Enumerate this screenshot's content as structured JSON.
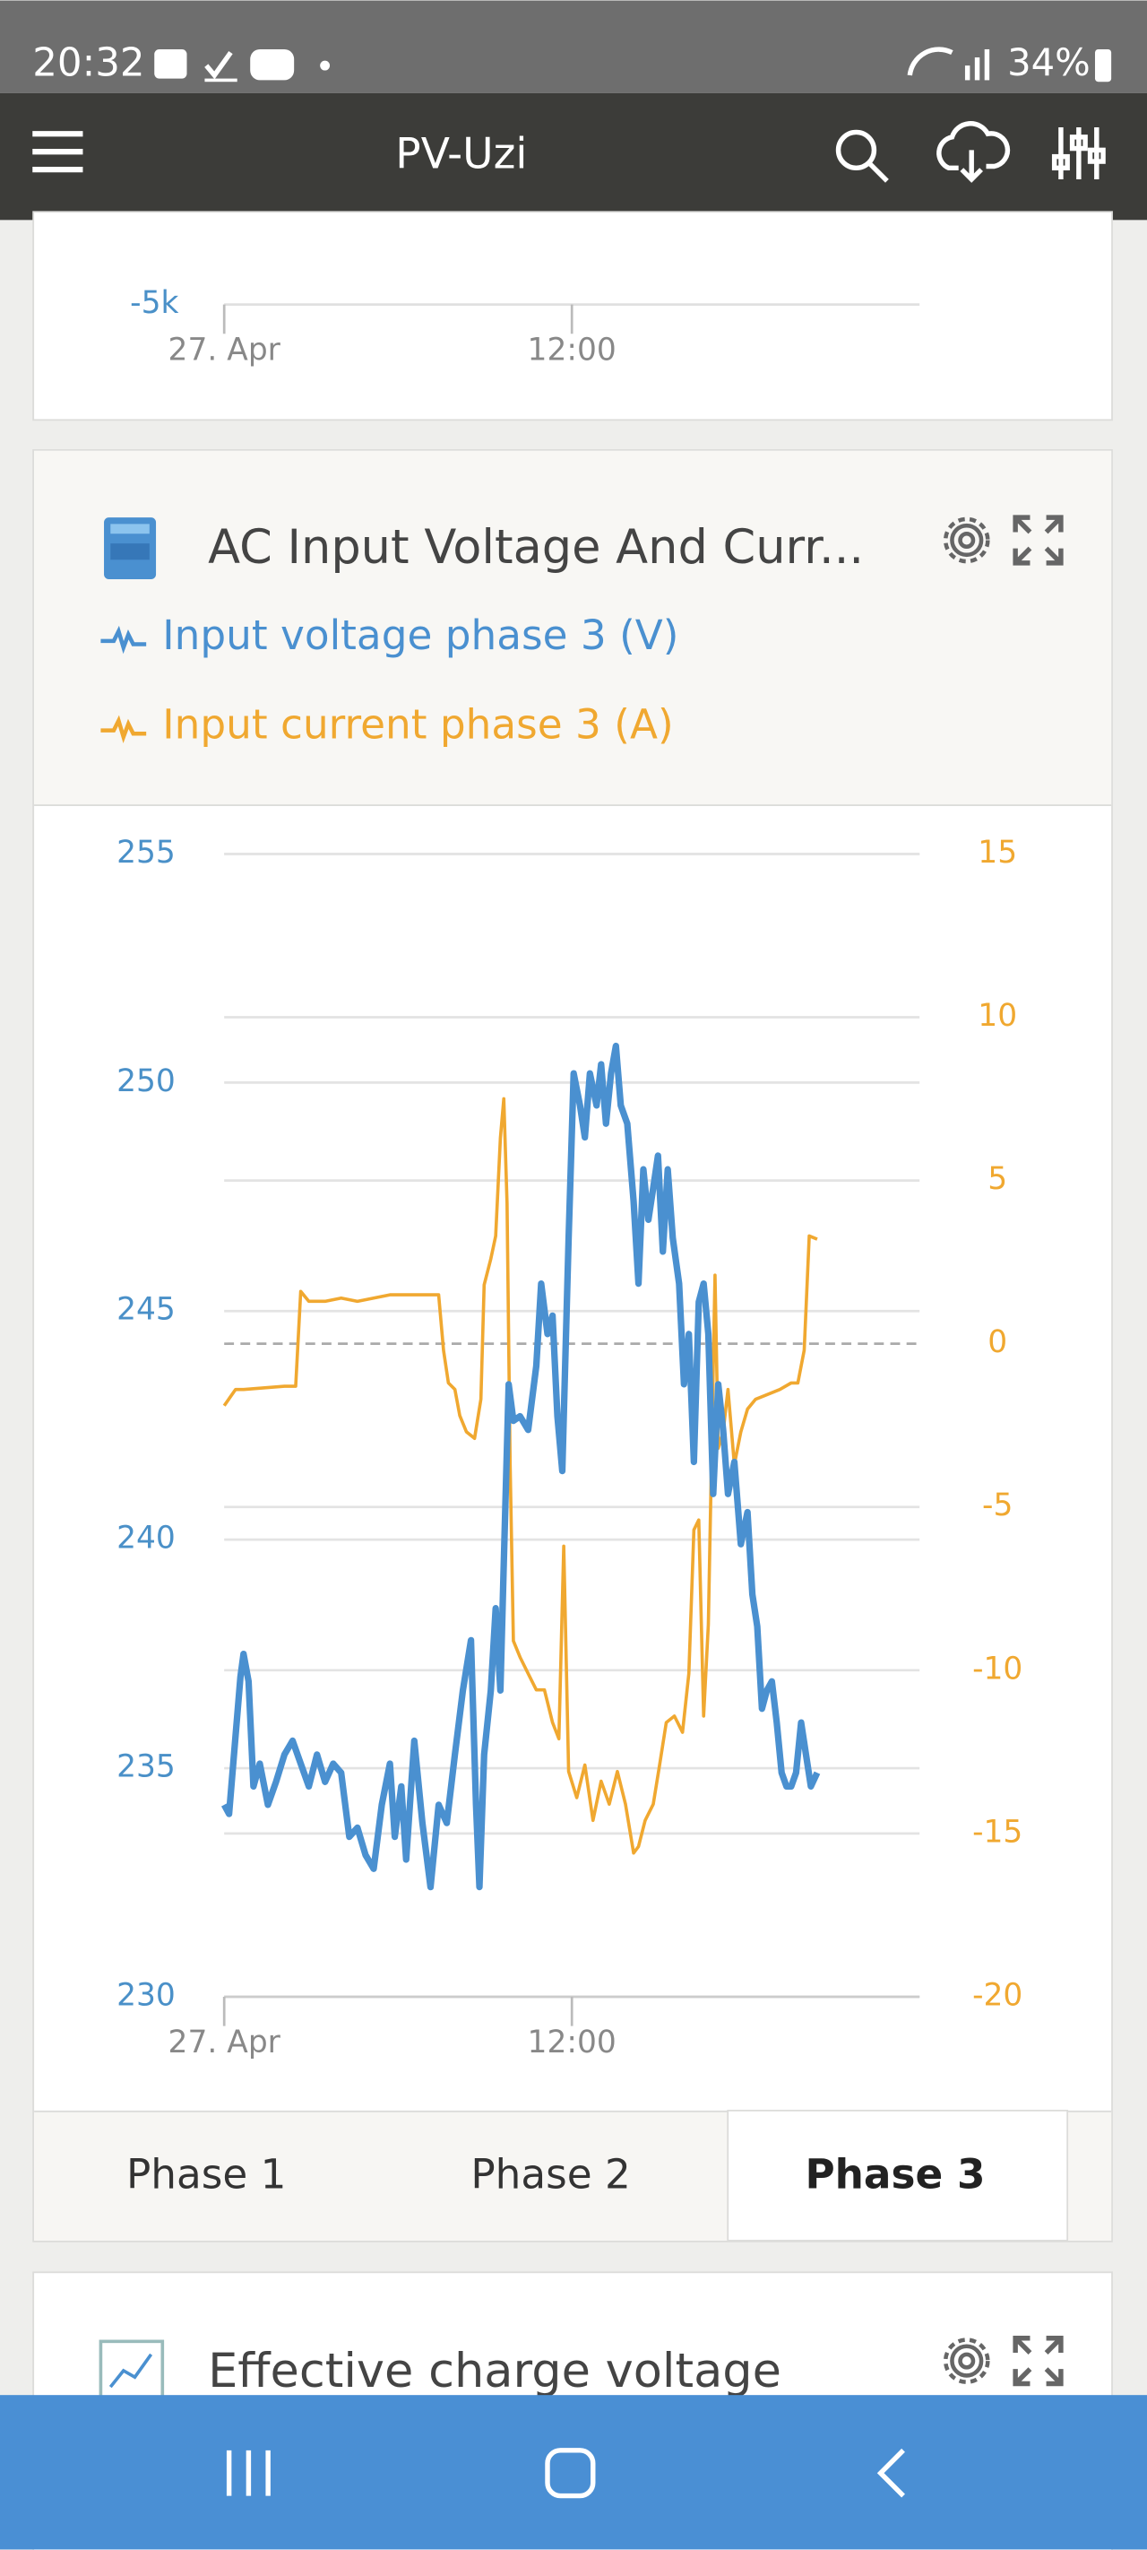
{
  "status_bar": {
    "time": "20:32",
    "battery": "34%"
  },
  "app_bar": {
    "title": "PV-Uzi"
  },
  "top_card": {
    "xlim": [
      0,
      24
    ],
    "yticks": [
      {
        "value": -5000,
        "label": "-5k"
      }
    ],
    "xticks": [
      {
        "value": 0,
        "label": "27. Apr"
      },
      {
        "value": 12,
        "label": "12:00"
      }
    ]
  },
  "chart_data": {
    "type": "line",
    "title": "AC Input Voltage And Curr...",
    "series": [
      {
        "name": "Input voltage phase 3 (V)",
        "color": "#4a90d0",
        "x": [
          0,
          0.17,
          0.56,
          0.67,
          0.84,
          1.01,
          1.23,
          1.51,
          1.79,
          2.08,
          2.36,
          2.64,
          2.92,
          3.2,
          3.48,
          3.76,
          4.04,
          4.32,
          4.6,
          4.88,
          5.16,
          5.44,
          5.72,
          5.89,
          6.11,
          6.28,
          6.56,
          6.84,
          7.12,
          7.4,
          7.68,
          7.96,
          8.24,
          8.52,
          8.69,
          8.81,
          8.97,
          9.2,
          9.37,
          9.53,
          9.65,
          9.82,
          9.98,
          10.21,
          10.49,
          10.77,
          10.94,
          11.16,
          11.33,
          11.5,
          11.67,
          11.89,
          12.06,
          12.28,
          12.45,
          12.62,
          12.85,
          13.01,
          13.18,
          13.35,
          13.52,
          13.69,
          13.91,
          14.13,
          14.3,
          14.47,
          14.64,
          14.81,
          14.97,
          15.14,
          15.31,
          15.48,
          15.7,
          15.87,
          16.04,
          16.21,
          16.38,
          16.55,
          16.71,
          16.88,
          17.05,
          17.22,
          17.39,
          17.61,
          17.83,
          18.06,
          18.23,
          18.4,
          18.56,
          18.73,
          18.9,
          19.07,
          19.24,
          19.41,
          19.57,
          19.74,
          19.91,
          20.08,
          20.25,
          20.47
        ],
        "values": [
          234.2,
          234.0,
          237.0,
          237.5,
          236.9,
          234.6,
          235.1,
          234.2,
          234.7,
          235.3,
          235.6,
          235.1,
          234.6,
          235.3,
          234.7,
          235.1,
          234.9,
          233.5,
          233.7,
          233.1,
          232.8,
          234.2,
          235.1,
          233.5,
          234.6,
          233.0,
          235.6,
          233.8,
          232.4,
          234.2,
          233.8,
          235.3,
          236.7,
          237.8,
          234.2,
          232.4,
          235.3,
          236.7,
          238.5,
          236.7,
          239.5,
          243.4,
          242.6,
          242.7,
          242.4,
          243.8,
          245.6,
          244.5,
          244.9,
          242.7,
          241.5,
          246.6,
          250.2,
          249.5,
          248.8,
          250.2,
          249.5,
          250.4,
          249.1,
          250.2,
          250.8,
          249.5,
          249.1,
          247.4,
          245.6,
          248.1,
          247.0,
          247.7,
          248.4,
          246.3,
          248.1,
          246.6,
          245.6,
          243.4,
          244.5,
          241.7,
          245.2,
          245.6,
          244.5,
          241.0,
          243.4,
          242.4,
          241.0,
          241.7,
          239.9,
          240.6,
          238.8,
          238.1,
          236.3,
          236.7,
          236.9,
          236.0,
          234.9,
          234.6,
          234.6,
          234.9,
          236.0,
          235.3,
          234.6,
          234.9
        ]
      },
      {
        "name": "Input current phase 3 (A)",
        "color": "#f0a830",
        "axis": "y2",
        "x": [
          0,
          0.39,
          0.67,
          2.08,
          2.47,
          2.64,
          2.92,
          3.48,
          4.04,
          4.6,
          5.16,
          5.72,
          6.28,
          6.84,
          7.4,
          7.57,
          7.74,
          7.96,
          8.13,
          8.36,
          8.64,
          8.86,
          8.97,
          9.2,
          9.37,
          9.53,
          9.65,
          9.76,
          9.87,
          9.98,
          10.21,
          10.49,
          10.77,
          11.05,
          11.33,
          11.55,
          11.72,
          11.89,
          12.17,
          12.45,
          12.73,
          13.01,
          13.29,
          13.57,
          13.85,
          14.13,
          14.3,
          14.53,
          14.81,
          15.03,
          15.26,
          15.54,
          15.82,
          16.04,
          16.21,
          16.38,
          16.55,
          16.71,
          16.94,
          17.05,
          17.22,
          17.39,
          17.61,
          17.83,
          18.06,
          18.34,
          18.62,
          19.18,
          19.57,
          19.8,
          20.02,
          20.19,
          20.47
        ],
        "values": [
          -1.9,
          -1.4,
          -1.4,
          -1.3,
          -1.3,
          1.6,
          1.3,
          1.3,
          1.4,
          1.3,
          1.4,
          1.5,
          1.5,
          1.5,
          1.5,
          -0.2,
          -1.2,
          -1.4,
          -2.2,
          -2.7,
          -2.9,
          -1.7,
          1.8,
          2.6,
          3.3,
          6.3,
          7.5,
          4.3,
          -3.7,
          -9.1,
          -9.6,
          -10.1,
          -10.6,
          -10.6,
          -11.6,
          -12.1,
          -6.2,
          -13.1,
          -13.9,
          -12.9,
          -14.6,
          -13.4,
          -14.1,
          -13.1,
          -14.1,
          -15.6,
          -15.4,
          -14.6,
          -14.1,
          -12.9,
          -11.6,
          -11.4,
          -11.9,
          -10.1,
          -5.7,
          -5.4,
          -11.4,
          -8.6,
          2.1,
          -3.2,
          -2.7,
          -1.4,
          -3.7,
          -2.7,
          -2.0,
          -1.7,
          -1.6,
          -1.4,
          -1.2,
          -1.2,
          -0.2,
          3.3,
          3.2
        ]
      }
    ],
    "xlim": [
      0,
      24
    ],
    "xticks": [
      {
        "value": 0,
        "label": "27. Apr"
      },
      {
        "value": 12,
        "label": "12:00"
      }
    ],
    "ylim": [
      230,
      255
    ],
    "yticks": [
      230,
      235,
      240,
      245,
      250,
      255
    ],
    "y2lim": [
      -20,
      15
    ],
    "y2ticks": [
      -20,
      -15,
      -10,
      -5,
      0,
      5,
      10,
      15
    ],
    "grid": true
  },
  "tabs": [
    {
      "label": "Phase 1"
    },
    {
      "label": "Phase 2"
    },
    {
      "label": "Phase 3",
      "active": true
    }
  ],
  "next_card": {
    "title": "Effective charge voltage"
  }
}
